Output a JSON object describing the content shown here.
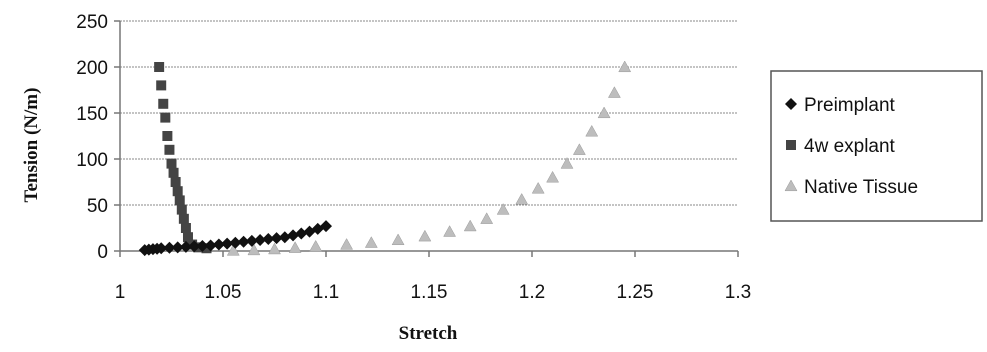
{
  "chart_data": {
    "type": "scatter",
    "title": "",
    "xlabel": "Stretch",
    "ylabel": "Tension (N/m)",
    "xlim": [
      1,
      1.3
    ],
    "ylim": [
      0,
      250
    ],
    "xticks": [
      "1",
      "1.05",
      "1.1",
      "1.15",
      "1.2",
      "1.25",
      "1.3"
    ],
    "yticks": [
      "0",
      "50",
      "100",
      "150",
      "200",
      "250"
    ],
    "grid": "horizontal",
    "legend_position": "right",
    "series": [
      {
        "name": "Preimplant",
        "marker": "diamond",
        "color": "#111111",
        "points": [
          [
            1.012,
            1
          ],
          [
            1.014,
            1.5
          ],
          [
            1.016,
            2
          ],
          [
            1.018,
            2.5
          ],
          [
            1.02,
            3
          ],
          [
            1.024,
            3.5
          ],
          [
            1.028,
            4
          ],
          [
            1.032,
            4.5
          ],
          [
            1.036,
            5
          ],
          [
            1.04,
            5.5
          ],
          [
            1.044,
            6
          ],
          [
            1.048,
            7
          ],
          [
            1.052,
            8
          ],
          [
            1.056,
            9
          ],
          [
            1.06,
            10
          ],
          [
            1.064,
            11
          ],
          [
            1.068,
            12
          ],
          [
            1.072,
            13
          ],
          [
            1.076,
            14
          ],
          [
            1.08,
            15
          ],
          [
            1.084,
            17
          ],
          [
            1.088,
            19
          ],
          [
            1.092,
            21
          ],
          [
            1.096,
            24
          ],
          [
            1.1,
            27
          ]
        ]
      },
      {
        "name": "4w explant",
        "marker": "square",
        "color": "#444444",
        "points": [
          [
            1.019,
            200
          ],
          [
            1.02,
            180
          ],
          [
            1.021,
            160
          ],
          [
            1.022,
            145
          ],
          [
            1.023,
            125
          ],
          [
            1.024,
            110
          ],
          [
            1.025,
            95
          ],
          [
            1.026,
            85
          ],
          [
            1.027,
            75
          ],
          [
            1.028,
            65
          ],
          [
            1.029,
            55
          ],
          [
            1.03,
            45
          ],
          [
            1.031,
            35
          ],
          [
            1.032,
            25
          ],
          [
            1.033,
            15
          ],
          [
            1.035,
            7
          ],
          [
            1.038,
            4
          ],
          [
            1.042,
            3
          ]
        ]
      },
      {
        "name": "Native Tissue",
        "marker": "triangle",
        "color": "#bdbdbd",
        "points": [
          [
            1.055,
            0.5
          ],
          [
            1.065,
            1
          ],
          [
            1.075,
            2
          ],
          [
            1.085,
            3.5
          ],
          [
            1.095,
            5
          ],
          [
            1.11,
            7
          ],
          [
            1.122,
            9
          ],
          [
            1.135,
            12
          ],
          [
            1.148,
            16
          ],
          [
            1.16,
            21
          ],
          [
            1.17,
            27
          ],
          [
            1.178,
            35
          ],
          [
            1.186,
            45
          ],
          [
            1.195,
            56
          ],
          [
            1.203,
            68
          ],
          [
            1.21,
            80
          ],
          [
            1.217,
            95
          ],
          [
            1.223,
            110
          ],
          [
            1.229,
            130
          ],
          [
            1.235,
            150
          ],
          [
            1.24,
            172
          ],
          [
            1.245,
            200
          ]
        ]
      }
    ]
  }
}
